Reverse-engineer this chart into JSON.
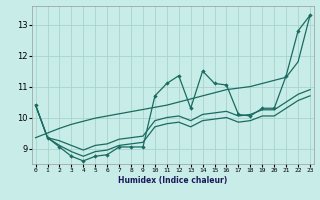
{
  "xlabel": "Humidex (Indice chaleur)",
  "bg_color": "#c8ece8",
  "grid_color": "#a8d4d0",
  "line_color": "#1a6b60",
  "x_data": [
    0,
    1,
    2,
    3,
    4,
    5,
    6,
    7,
    8,
    9,
    10,
    11,
    12,
    13,
    14,
    15,
    16,
    17,
    18,
    19,
    20,
    21,
    22,
    23
  ],
  "line_main": [
    10.4,
    9.35,
    9.05,
    8.75,
    8.6,
    8.75,
    8.8,
    9.05,
    9.05,
    9.05,
    10.7,
    11.1,
    11.35,
    10.3,
    11.5,
    11.1,
    11.05,
    10.1,
    10.05,
    10.3,
    10.3,
    11.35,
    12.8,
    13.3
  ],
  "line_env1": [
    10.4,
    9.35,
    9.1,
    8.9,
    8.75,
    8.9,
    8.95,
    9.1,
    9.15,
    9.2,
    9.7,
    9.8,
    9.85,
    9.7,
    9.9,
    9.95,
    10.0,
    9.85,
    9.9,
    10.05,
    10.05,
    10.3,
    10.55,
    10.7
  ],
  "line_env2": [
    10.4,
    9.35,
    9.25,
    9.1,
    8.95,
    9.1,
    9.15,
    9.3,
    9.35,
    9.4,
    9.9,
    10.0,
    10.05,
    9.9,
    10.1,
    10.15,
    10.2,
    10.05,
    10.1,
    10.25,
    10.25,
    10.5,
    10.75,
    10.9
  ],
  "line_trend": [
    9.35,
    9.5,
    9.65,
    9.78,
    9.88,
    9.98,
    10.05,
    10.12,
    10.19,
    10.26,
    10.33,
    10.4,
    10.5,
    10.6,
    10.7,
    10.8,
    10.9,
    10.95,
    11.0,
    11.1,
    11.2,
    11.3,
    11.8,
    13.3
  ],
  "xlim": [
    -0.3,
    23.3
  ],
  "ylim": [
    8.5,
    13.6
  ],
  "yticks": [
    9,
    10,
    11,
    12,
    13
  ],
  "xtick_labels": [
    "0",
    "1",
    "2",
    "3",
    "4",
    "5",
    "6",
    "7",
    "8",
    "9",
    "10",
    "11",
    "12",
    "13",
    "14",
    "15",
    "16",
    "17",
    "18",
    "19",
    "20",
    "21",
    "22",
    "23"
  ]
}
